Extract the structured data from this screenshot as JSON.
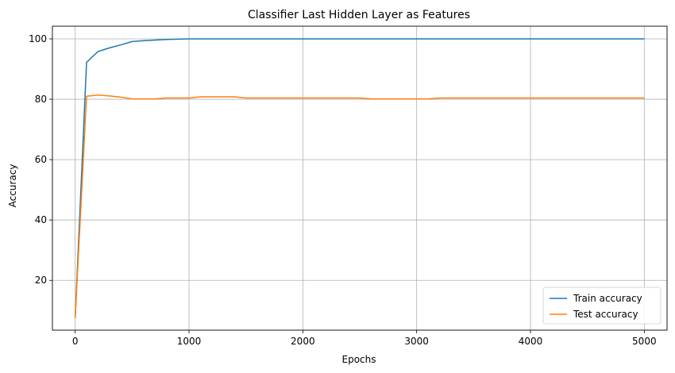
{
  "chart_data": {
    "type": "line",
    "title": "Classifier Last Hidden Layer as Features",
    "xlabel": "Epochs",
    "ylabel": "Accuracy",
    "xlim": [
      -200,
      5200
    ],
    "ylim": [
      3.5,
      104.2
    ],
    "xticks": [
      0,
      1000,
      2000,
      3000,
      4000,
      5000
    ],
    "yticks": [
      20,
      40,
      60,
      80,
      100
    ],
    "grid": true,
    "legend_position": "lower-right",
    "series": [
      {
        "name": "Train accuracy",
        "color": "#1f77b4",
        "x": [
          0,
          100,
          200,
          300,
          400,
          500,
          600,
          700,
          800,
          900,
          1000,
          1500,
          2000,
          2500,
          3000,
          3500,
          4000,
          4500,
          5000
        ],
        "y": [
          7.5,
          92.2,
          95.8,
          97.0,
          98.0,
          99.1,
          99.4,
          99.6,
          99.8,
          99.9,
          100.0,
          100.0,
          100.0,
          100.0,
          100.0,
          100.0,
          100.0,
          100.0,
          100.0
        ]
      },
      {
        "name": "Test accuracy",
        "color": "#ff7f0e",
        "x": [
          0,
          100,
          200,
          300,
          400,
          500,
          600,
          700,
          800,
          900,
          1000,
          1100,
          1200,
          1300,
          1400,
          1500,
          1600,
          1700,
          1800,
          1900,
          2000,
          2100,
          2200,
          2300,
          2400,
          2500,
          2600,
          2700,
          2800,
          2900,
          3000,
          3100,
          3200,
          3300,
          3400,
          3500,
          3600,
          3700,
          3800,
          3900,
          4000,
          4100,
          4200,
          4300,
          4400,
          4500,
          4600,
          4700,
          4800,
          4900,
          5000
        ],
        "y": [
          7.5,
          81.0,
          81.4,
          81.1,
          80.7,
          80.1,
          80.1,
          80.1,
          80.4,
          80.4,
          80.4,
          80.8,
          80.8,
          80.8,
          80.8,
          80.4,
          80.4,
          80.4,
          80.4,
          80.4,
          80.4,
          80.4,
          80.4,
          80.4,
          80.4,
          80.4,
          80.1,
          80.1,
          80.1,
          80.1,
          80.1,
          80.1,
          80.4,
          80.4,
          80.4,
          80.4,
          80.4,
          80.4,
          80.4,
          80.4,
          80.4,
          80.4,
          80.4,
          80.4,
          80.4,
          80.4,
          80.4,
          80.4,
          80.4,
          80.4,
          80.4
        ]
      }
    ]
  }
}
